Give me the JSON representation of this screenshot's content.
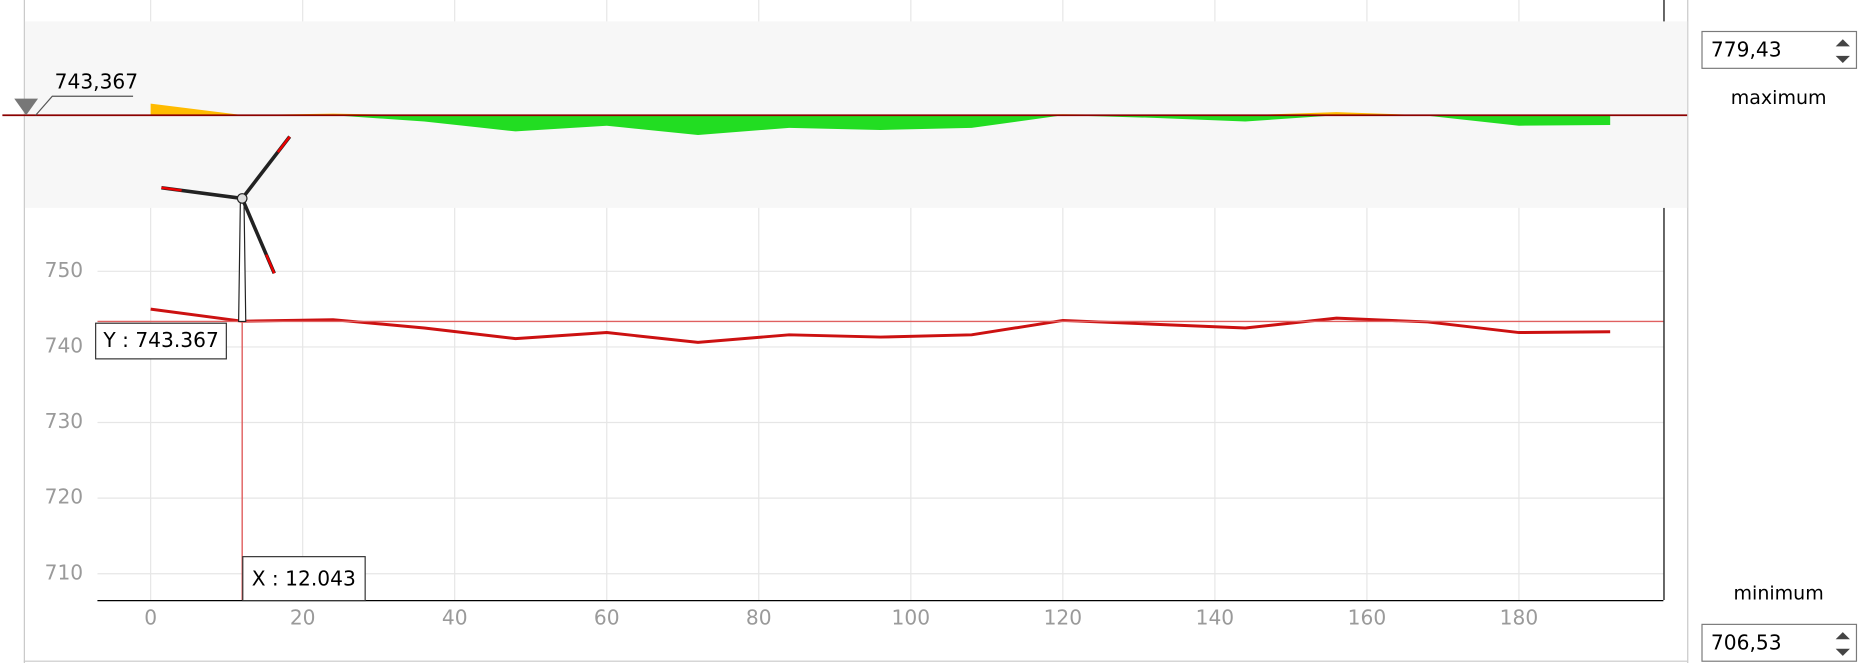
{
  "chart_data": {
    "type": "line",
    "x": [
      0,
      12,
      24,
      36,
      48,
      60,
      72,
      84,
      96,
      108,
      120,
      132,
      144,
      156,
      168,
      180,
      192
    ],
    "series": [
      {
        "color": "#cc1111",
        "values": [
          745.0,
          743.4,
          743.6,
          742.5,
          741.1,
          741.9,
          740.6,
          741.6,
          741.3,
          741.6,
          743.5,
          743.0,
          742.5,
          743.8,
          743.3,
          741.9,
          742.0
        ]
      }
    ],
    "xlim": [
      -7,
      199
    ],
    "ylim": [
      706.53,
      779.43
    ],
    "xticks": [
      0,
      20,
      40,
      60,
      80,
      100,
      120,
      140,
      160,
      180
    ],
    "yticks": [
      710,
      720,
      730,
      740,
      750
    ],
    "grid": true,
    "crosshair": {
      "x": 12.043,
      "y": 743.367,
      "x_label": "X : 12.043",
      "y_label": "Y : 743.367"
    }
  },
  "controls": {
    "threshold_label": "743,367",
    "maximum": {
      "value": "779,43",
      "label": "maximum"
    },
    "minimum": {
      "value": "706,53",
      "label": "minimum"
    }
  }
}
